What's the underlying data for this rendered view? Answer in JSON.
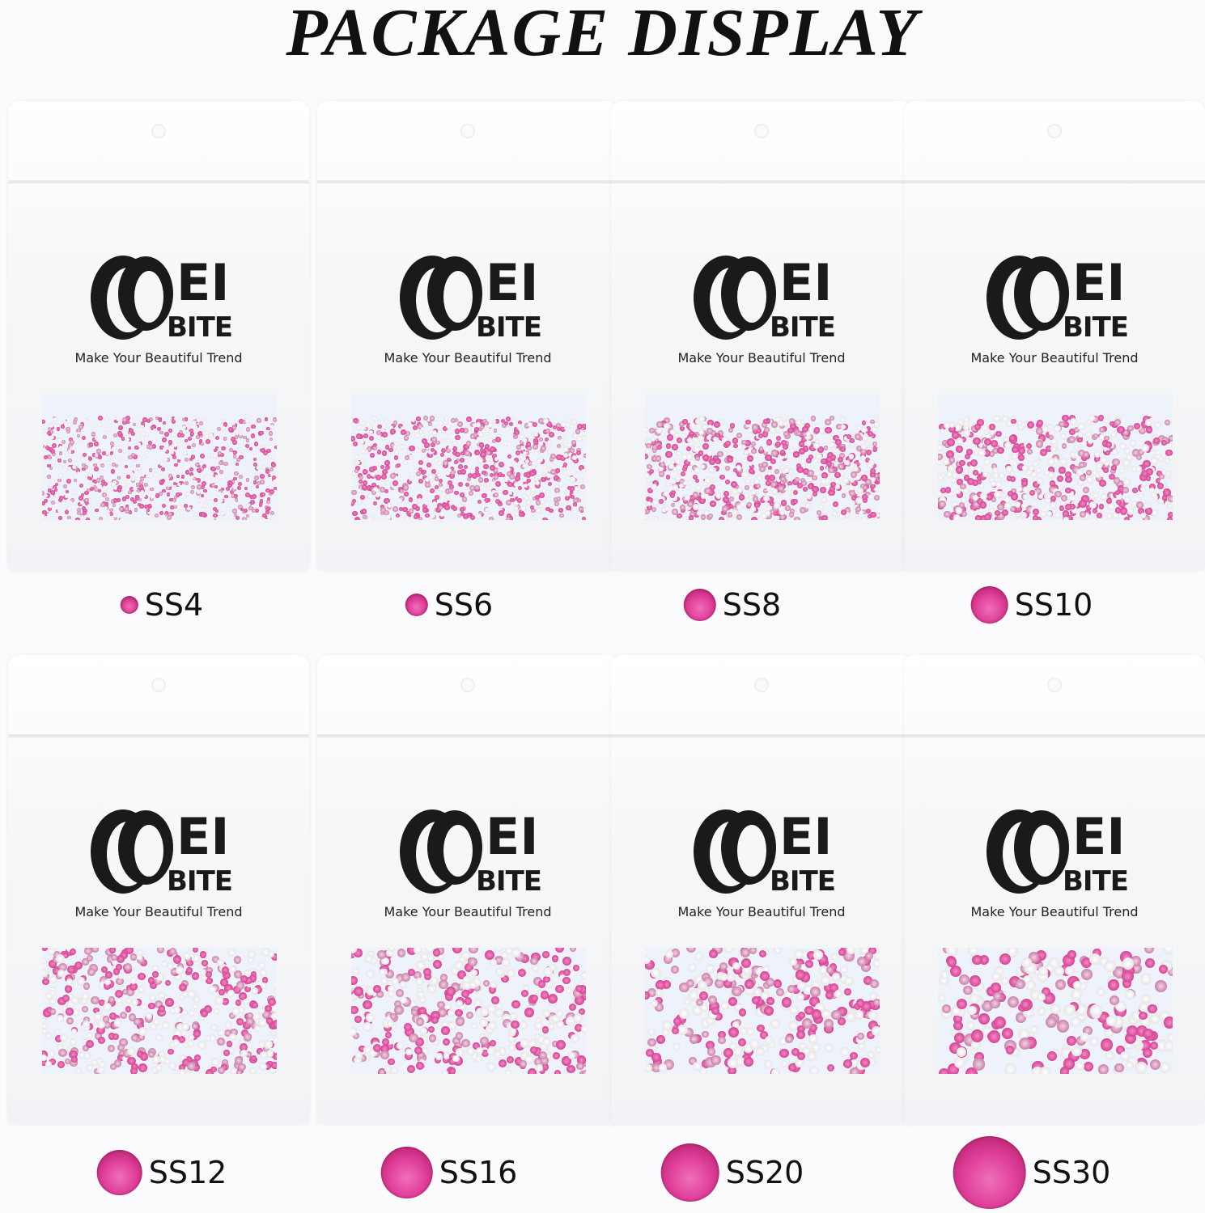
{
  "title": "PACKAGE DISPLAY",
  "brand": {
    "logo_top": "EI",
    "logo_bottom": "BITE",
    "tagline": "Make Your Beautiful Trend"
  },
  "colors": {
    "crystal": "#e0409a",
    "crystal_light": "#f5c6e2",
    "crystal_silver": "#f2f2f4"
  },
  "packages": [
    {
      "size": "SS4"
    },
    {
      "size": "SS6"
    },
    {
      "size": "SS8"
    },
    {
      "size": "SS10"
    },
    {
      "size": "SS12"
    },
    {
      "size": "SS16"
    },
    {
      "size": "SS20"
    },
    {
      "size": "SS30"
    }
  ]
}
